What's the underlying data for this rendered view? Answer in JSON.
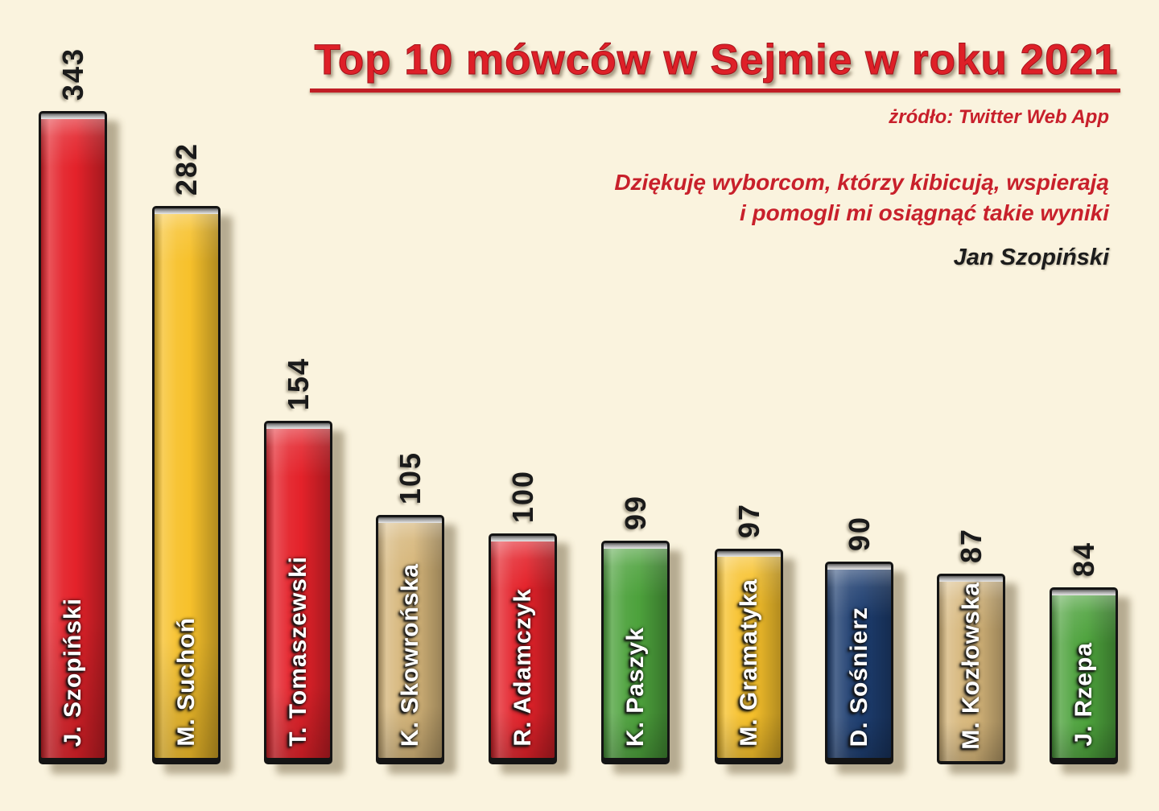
{
  "header": {
    "title": "Top 10 mówców w Sejmie w roku 2021",
    "source": "żródło: Twitter Web App"
  },
  "quote": {
    "line1": "Dziękuję  wyborcom, którzy kibicują, wspierają",
    "line2": "i  pomogli mi osiągnąć takie wyniki",
    "attribution": "Jan Szopiński"
  },
  "colors": {
    "background": "#faf3de",
    "title_red": "#de2028",
    "accent_red": "#c8202b",
    "rule_red": "#c01d25",
    "attribution_black": "#1c1c1c",
    "bar_border": "#141414",
    "name_text": "#ffffff",
    "value_text": "#1a1a1a",
    "palette": {
      "red": {
        "base": "#e4222a",
        "light": "#f4564a",
        "dark": "#9c1116"
      },
      "gold": {
        "base": "#f7c12b",
        "light": "#ffdf6e",
        "dark": "#c68c14"
      },
      "tan": {
        "base": "#d6b67a",
        "light": "#e9d5a5",
        "dark": "#a07e44"
      },
      "green": {
        "base": "#4da23c",
        "light": "#7cc45e",
        "dark": "#2c6b22"
      },
      "navy": {
        "base": "#1d3d6f",
        "light": "#35598f",
        "dark": "#0e2142"
      }
    }
  },
  "chart_data": {
    "type": "bar",
    "orientation": "vertical",
    "title": "Top 10 mówców w Sejmie w roku 2021",
    "source": "żródło: Twitter Web App",
    "categories": [
      "J. Szopiński",
      "M. Suchoń",
      "T. Tomaszewski",
      "K. Skowrońska",
      "R. Adamczyk",
      "K. Paszyk",
      "M. Gramatyka",
      "D. Sośnierz",
      "M. Kozłowska",
      "J. Rzepa"
    ],
    "values": [
      343,
      282,
      154,
      105,
      100,
      99,
      97,
      90,
      87,
      84
    ],
    "bar_colors": [
      "red",
      "gold",
      "red",
      "tan",
      "red",
      "green",
      "gold",
      "navy",
      "tan",
      "green"
    ],
    "value_label_style": "rotated -90, black, above bar",
    "category_label_style": "rotated -90, white, inside bar bottom",
    "annotations": [
      "Dziękuję  wyborcom, którzy kibicują, wspierają",
      "i  pomogli mi osiągnąć takie wyniki",
      "Jan Szopiński"
    ],
    "xlabel": "",
    "ylabel": "",
    "grid": false,
    "legend": false
  }
}
